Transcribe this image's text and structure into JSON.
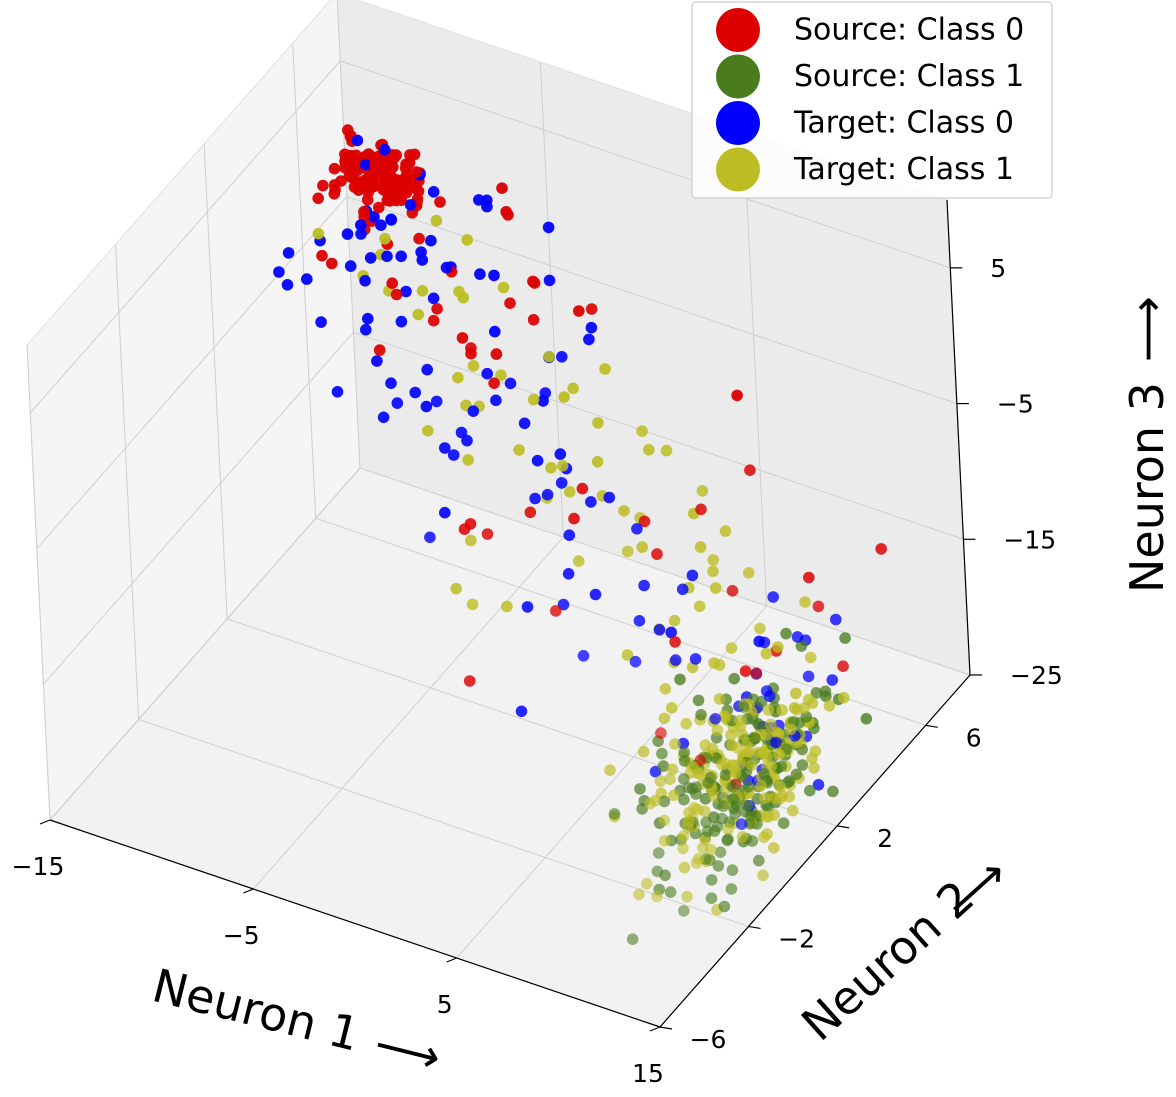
{
  "chart_data": {
    "type": "scatter3d",
    "title": "",
    "xlabel": "Neuron 1",
    "ylabel": "Neuron 2",
    "zlabel": "Neuron 3",
    "arrow": "⟶",
    "xlim": [
      -15,
      15
    ],
    "ylim": [
      -6,
      8
    ],
    "zlim": [
      -25,
      10
    ],
    "xticks": [
      -15,
      -5,
      5,
      15
    ],
    "yticks": [
      -6,
      -2,
      2,
      6
    ],
    "zticks": [
      -25,
      -15,
      -5,
      5
    ],
    "xtick_labels": [
      "−15",
      "−5",
      "5",
      "15"
    ],
    "ytick_labels": [
      "−6",
      "−2",
      "2",
      "6"
    ],
    "ztick_labels": [
      "−25",
      "−15",
      "−5",
      "5"
    ],
    "legend_location": "top-right",
    "series": [
      {
        "name": "Source: Class 0",
        "color": "#dc0000",
        "clusters": [
          {
            "center": [
              -13,
              8,
              -2
            ],
            "count": 120,
            "spread": [
              1.2,
              0.8,
              1.2
            ]
          },
          {
            "center": [
              -8,
              6,
              -4
            ],
            "count": 22,
            "spread": [
              3,
              1.2,
              3
            ]
          },
          {
            "center": [
              2,
              3,
              -9
            ],
            "count": 15,
            "spread": [
              4,
              2,
              4
            ]
          },
          {
            "center": [
              12,
              1,
              -13
            ],
            "count": 12,
            "spread": [
              3,
              2,
              3
            ]
          }
        ]
      },
      {
        "name": "Source: Class 1",
        "color": "#4a7c1e",
        "clusters": [
          {
            "center": [
              14,
              -1,
              -17
            ],
            "count": 170,
            "spread": [
              2,
              1.6,
              2.5
            ]
          }
        ]
      },
      {
        "name": "Target: Class 0",
        "color": "#0000ff",
        "clusters": [
          {
            "center": [
              -11,
              6.5,
              -3
            ],
            "count": 40,
            "spread": [
              2,
              1.2,
              2
            ]
          },
          {
            "center": [
              -4,
              4.5,
              -7
            ],
            "count": 30,
            "spread": [
              3,
              1.5,
              3
            ]
          },
          {
            "center": [
              4,
              2,
              -11
            ],
            "count": 25,
            "spread": [
              3.5,
              1.5,
              3
            ]
          },
          {
            "center": [
              13,
              0,
              -15
            ],
            "count": 30,
            "spread": [
              2,
              1.5,
              2.5
            ]
          }
        ]
      },
      {
        "name": "Target: Class 1",
        "color": "#bcbd22",
        "clusters": [
          {
            "center": [
              -9,
              6,
              -4
            ],
            "count": 12,
            "spread": [
              3,
              1.2,
              2
            ]
          },
          {
            "center": [
              -1,
              4,
              -9
            ],
            "count": 25,
            "spread": [
              4,
              1.5,
              3
            ]
          },
          {
            "center": [
              8,
              2,
              -12
            ],
            "count": 25,
            "spread": [
              3.5,
              1.5,
              3
            ]
          },
          {
            "center": [
              14,
              -1,
              -16
            ],
            "count": 180,
            "spread": [
              2,
              1.6,
              2.5
            ]
          }
        ]
      }
    ]
  }
}
